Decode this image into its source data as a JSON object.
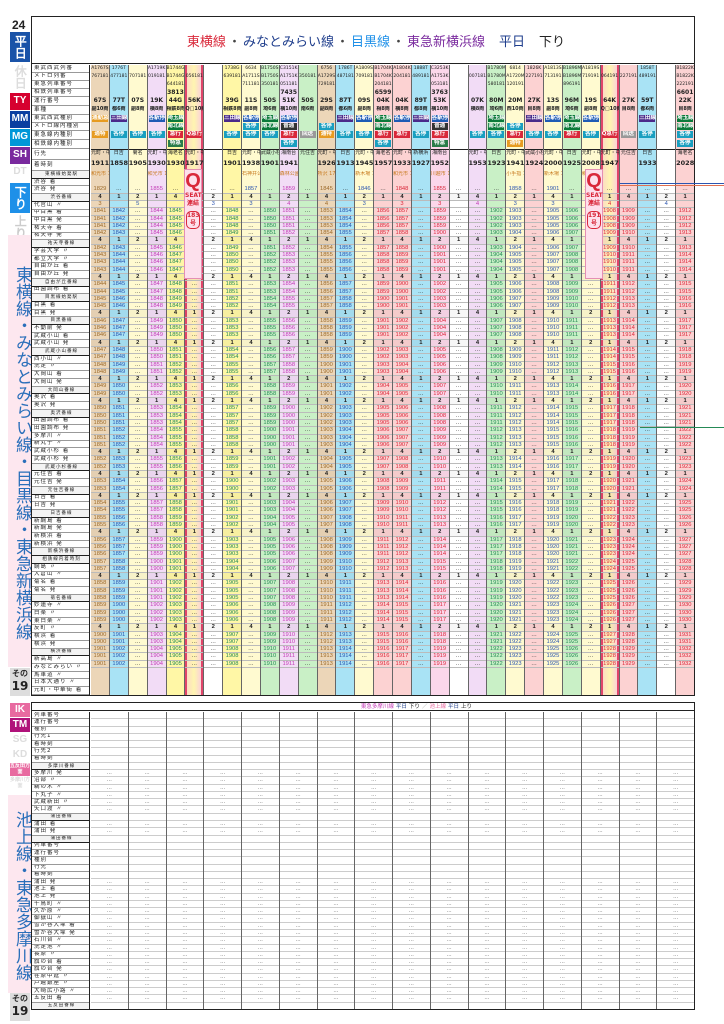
{
  "page": {
    "number": "24",
    "footer_label": "その",
    "footer_number": "19",
    "day_tabs": [
      {
        "label": "平日",
        "active": true,
        "color": "#1a53a8"
      },
      {
        "label": "休日",
        "active": false,
        "color": "#dddddd"
      }
    ],
    "line_tags_top": [
      {
        "label": "TY",
        "color": "#d6002f"
      },
      {
        "label": "MM",
        "color": "#0a3ea0"
      },
      {
        "label": "MG",
        "color": "#0097d8"
      },
      {
        "label": "SH",
        "color": "#7a2a9e"
      },
      {
        "label": "DT",
        "color": "#e0e0e0"
      },
      {
        "label": "OM",
        "color": "#e0e0e0"
      }
    ],
    "direction_tabs": [
      {
        "label": "下り",
        "active": true,
        "color": "#1e90e8"
      },
      {
        "label": "上り",
        "active": false,
        "color": "#dddddd"
      }
    ],
    "vertical_title_top": "東横線・みなとみらい線・目黒線・東急新横浜線",
    "line_tags_bottom": [
      {
        "label": "IK",
        "color": "#e86aa0"
      },
      {
        "label": "TM",
        "color": "#b0127a"
      },
      {
        "label": "SG",
        "color": "#e0e0e0"
      },
      {
        "label": "KD",
        "color": "#e0e0e0"
      },
      {
        "label": "五反田方面",
        "color": "#e86aa0"
      },
      {
        "label": "多摩川方面",
        "color": "#e0e0e0"
      }
    ],
    "vertical_title_bottom": "池上線・東急多摩川線"
  },
  "upper_table": {
    "title": {
      "parts": [
        {
          "text": "東横線",
          "color": "#d9283a"
        },
        {
          "text": "・",
          "color": "#444444"
        },
        {
          "text": "みなとみらい線",
          "color": "#1e3d8c"
        },
        {
          "text": "・",
          "color": "#444444"
        },
        {
          "text": "目黒線",
          "color": "#1e90e8"
        },
        {
          "text": "・",
          "color": "#444444"
        },
        {
          "text": "東急新横浜線",
          "color": "#7a2a9e"
        },
        {
          "text": "平日",
          "color": "#1e3d8c"
        },
        {
          "text": "下り",
          "color": "#222222"
        }
      ]
    },
    "header_labels": [
      "東武西武列番",
      "メトロ列番",
      "東急列車番号",
      "相鉄列車番号",
      "運行番号",
      "車種",
      "東武西武種別",
      "メトロ線内種別",
      "東急線内種別",
      "相鉄線内種別",
      "行先",
      "着時刻"
    ],
    "station_labels": [
      "東横線始発駅",
      "渋谷 着",
      "渋谷 発",
      "渋谷番線",
      "代官山 〃",
      "中目黒 着",
      "中目黒 発",
      "祐天寺 着",
      "祐天寺 発",
      "祐天寺番線",
      "学芸大学 〃",
      "都立大学 〃",
      "自由が丘 着",
      "自由が丘 発",
      "自由が丘番線",
      "田園調布 着",
      "目黒線始発駅",
      "目黒 着",
      "目黒 発",
      "目黒番線",
      "不動前 発",
      "武蔵小山 着",
      "武蔵小山 発",
      "武蔵小山番線",
      "西小山 〃",
      "洗足 〃",
      "大岡山 着",
      "大岡山 発",
      "大岡山番線",
      "奥沢 着",
      "奥沢 発",
      "奥沢番線",
      "田園調布 着",
      "田園調布 発",
      "多摩川 〃",
      "新丸子 〃",
      "武蔵小杉 着",
      "武蔵小杉 発",
      "武蔵小杉番線",
      "元住吉 着",
      "元住吉 発",
      "元住吉番線",
      "日吉 着",
      "日吉 発",
      "日吉番線",
      "新綱島 着",
      "新綱島 発",
      "新横浜 着",
      "新横浜 発",
      "新横浜番線",
      "相鉄線内着時刻",
      "綱島 〃",
      "大倉山 〃",
      "菊名 着",
      "菊名 発",
      "菊名番線",
      "妙蓮寺 〃",
      "白楽 〃",
      "東白楽 〃",
      "反町 〃",
      "横浜 着",
      "横浜 発",
      "横浜番線",
      "新高島 〃",
      "みなとみらい 〃",
      "馬車道 〃",
      "日本大通り 〃",
      "元町・中華街 着"
    ],
    "trains": [
      {
        "tobu": "A1767S",
        "metro": "767181",
        "tokyu": "",
        "run": "67S",
        "car": "副10両",
        "type_seibu": "通勤急行",
        "type_metro": "",
        "type_tokyu": "通特",
        "dest": "元町・中華街",
        "arr": "1911",
        "bg": "tan",
        "origin": "和光市 1759"
      },
      {
        "tobu": "1776T",
        "metro": "477181",
        "tokyu": "",
        "run": "77T",
        "car": "都6両",
        "type_seibu": "三田線",
        "type_metro": "",
        "type_tokyu": "各停",
        "dest": "日吉",
        "arr": "1858",
        "bg": "cyan",
        "origin": ""
      },
      {
        "tobu": "",
        "metro": "707181",
        "tokyu": "",
        "run": "07S",
        "car": "副8両",
        "type_seibu": "",
        "type_metro": "",
        "type_tokyu": "各停",
        "dest": "菊名",
        "arr": "1905",
        "bg": "lyel",
        "origin": ""
      },
      {
        "tobu": "A1719K",
        "metro": "019181",
        "tokyu": "",
        "run": "19K",
        "car": "横8両",
        "type_seibu": "各駅停車",
        "type_metro": "",
        "type_tokyu": "各停",
        "dest": "元町・中華街",
        "arr": "1930",
        "bg": "lav",
        "origin": "和光市 1752"
      },
      {
        "tobu": "B1744G",
        "metro": "B1744G",
        "tokyu": "644181",
        "sotetsu": "3813",
        "run": "44G",
        "car": "相鉄8両",
        "type_seibu": "埼玉線",
        "type_metro": "南北線",
        "type_tokyu": "急行",
        "type_sotetsu": "特急",
        "dest": "海老名",
        "arr": "1930",
        "bg": "yel",
        "origin": ""
      },
      {
        "tobu": "",
        "metro": "056181",
        "tokyu": "",
        "run": "56K",
        "car": "Q□10両",
        "type_seibu": "",
        "type_metro": "",
        "type_tokyu": "Q急行",
        "dest": "元町・中華街",
        "arr": "1917",
        "bg": "grad",
        "origin": ""
      },
      {
        "tobu": "",
        "metro": "",
        "run": "",
        "car": "",
        "type_tokyu": "",
        "dest": "",
        "arr": "",
        "bg": "none",
        "origin": ""
      },
      {
        "tobu": "1738G",
        "metro": "639181",
        "run": "39G",
        "car": "相鉄8両",
        "type_seibu": "三田線",
        "type_tokyu": "各停",
        "dest": "日吉",
        "arr": "1901",
        "bg": "yel",
        "origin": ""
      },
      {
        "tobu": "6634",
        "metro": "A1711S",
        "tokyu": "711181",
        "run": "11S",
        "car": "副8両",
        "type_metro": "各停",
        "type_seibu": "各駅停車",
        "type_tokyu": "各停",
        "dest": "元町・中華街",
        "arr": "1938",
        "bg": "lyel",
        "origin": "石神井公園 1756"
      },
      {
        "tobu": "B1750S",
        "metro": "B1750S",
        "tokyu": "350181",
        "run": "50S",
        "car": "埼6両",
        "type_seibu": "埼玉線",
        "type_metro": "南北線",
        "type_tokyu": "各停",
        "dest": "武蔵小杉",
        "arr": "1901",
        "bg": "grn",
        "origin": ""
      },
      {
        "tobu": "C3151K",
        "metro": "A1751K",
        "tokyu": "051181",
        "sotetsu": "7435",
        "run": "51K",
        "car": "横10両",
        "type_metro": "普通",
        "type_seibu": "各駅停車",
        "type_tokyu": "急行",
        "type_sotetsu": "各停",
        "dest": "湘南台",
        "arr": "1941",
        "bg": "lav",
        "origin": "森林公園 1707"
      },
      {
        "tobu": "",
        "metro": "350181",
        "run": "50S",
        "car": "南6両",
        "type_tokyu": "回送",
        "dest": "元住吉",
        "arr": "",
        "bg": "grn",
        "origin": ""
      },
      {
        "tobu": "6756",
        "metro": "A1729S",
        "tokyu": "729181",
        "run": "29S",
        "car": "副8両",
        "type_metro": "各停",
        "type_seibu": "",
        "type_tokyu": "通特",
        "dest": "元町・中華街",
        "arr": "1926",
        "bg": "tan",
        "origin": "所沢 1749"
      },
      {
        "tobu": "1786T",
        "metro": "487181",
        "run": "87T",
        "car": "都6両",
        "type_seibu": "三田線",
        "type_tokyu": "各停",
        "dest": "日吉",
        "arr": "1913",
        "bg": "cyan",
        "origin": ""
      },
      {
        "tobu": "A1809S",
        "metro": "709181",
        "run": "09S",
        "car": "副8両",
        "type_seibu": "各駅停車",
        "type_tokyu": "各停",
        "dest": "元町・中華街",
        "arr": "1945",
        "bg": "lyel",
        "origin": "新木場 1859"
      },
      {
        "tobu": "B1704K",
        "metro": "B1704K",
        "tokyu": "204181",
        "sotetsu": "6599",
        "run": "04K",
        "car": "相8両",
        "type_seibu": "埼玉線",
        "type_metro": "南北線",
        "type_tokyu": "急行",
        "type_sotetsu": "各停",
        "dest": "海老名",
        "arr": "1957",
        "bg": "rose",
        "origin": ""
      },
      {
        "tobu": "A1804K",
        "metro": "204181",
        "run": "04K",
        "car": "横8両",
        "type_seibu": "各駅停車",
        "type_tokyu": "急行",
        "dest": "元町・中華街",
        "arr": "1933",
        "bg": "rose",
        "origin": "和光市 1808"
      },
      {
        "tobu": "1888T",
        "metro": "489181",
        "run": "89T",
        "car": "都8両",
        "type_seibu": "三田線",
        "type_tokyu": "各停",
        "dest": "新横浜",
        "arr": "1927",
        "bg": "cyan",
        "origin": ""
      },
      {
        "tobu": "C3253K",
        "metro": "A1753K",
        "tokyu": "053181",
        "sotetsu": "3763",
        "run": "53K",
        "car": "横10両",
        "type_metro": "普通",
        "type_seibu": "各駅停車",
        "type_tokyu": "急行",
        "type_sotetsu": "特急",
        "dest": "湘南台",
        "arr": "1952",
        "bg": "pink",
        "origin": "川越市 1745"
      },
      {
        "tobu": "",
        "bg": "none"
      },
      {
        "tobu": "",
        "metro": "007181",
        "run": "07K",
        "car": "横8両",
        "type_tokyu": "各停",
        "dest": "元町・中華街",
        "arr": "1953",
        "bg": "lav",
        "origin": ""
      },
      {
        "tobu": "B1780M",
        "metro": "B1780M",
        "tokyu": "580181",
        "run": "80M",
        "car": "埼6両",
        "type_seibu": "埼玉線",
        "type_metro": "南北線",
        "type_tokyu": "各停",
        "dest": "日吉",
        "arr": "1923",
        "bg": "grn",
        "origin": ""
      },
      {
        "tobu": "6814",
        "metro": "A1720M",
        "tokyu": "120191",
        "run": "20M",
        "car": "西10両",
        "type_metro": "各停",
        "type_tokyu": "急行",
        "type_sotetsu": "通特",
        "dest": "元町・中華街",
        "arr": "1941",
        "bg": "lyel",
        "origin": "小手指 1757"
      },
      {
        "tobu": "1826K",
        "metro": "227191",
        "run": "27K",
        "car": "目8両",
        "type_seibu": "三田線",
        "type_tokyu": "各停",
        "dest": "武蔵小杉",
        "arr": "1924",
        "bg": "rose",
        "origin": ""
      },
      {
        "tobu": "A1813S",
        "metro": "713191",
        "run": "13S",
        "car": "副8両",
        "type_seibu": "各駅停車",
        "type_tokyu": "各停",
        "dest": "元町・中華街",
        "arr": "2000",
        "bg": "lyel",
        "origin": "新木場 1854"
      },
      {
        "tobu": "B1896M",
        "metro": "B1896M",
        "tokyu": "896191",
        "run": "96M",
        "car": "埼6両",
        "type_seibu": "埼玉線",
        "type_metro": "南北線",
        "type_tokyu": "急行",
        "dest": "日吉",
        "arr": "1925",
        "bg": "grn",
        "origin": ""
      },
      {
        "tobu": "A1819S",
        "metro": "719191",
        "run": "19S",
        "car": "副8両",
        "type_seibu": "各駅停車",
        "type_tokyu": "各停",
        "dest": "元町・中華街",
        "arr": "2008",
        "bg": "lyel",
        "origin": "和光市 1825"
      },
      {
        "tobu": "",
        "metro": "064191",
        "run": "64K",
        "car": "Q□10両",
        "type_tokyu": "Q急行",
        "dest": "元町・中華街",
        "arr": "1947",
        "bg": "grad",
        "origin": ""
      },
      {
        "tobu": "",
        "metro": "227191",
        "run": "27K",
        "car": "目8両",
        "type_tokyu": "回送",
        "dest": "元住吉",
        "arr": "",
        "bg": "rose",
        "origin": ""
      },
      {
        "tobu": "1858T",
        "metro": "489191",
        "run": "59T",
        "car": "都6両",
        "type_seibu": "三田線",
        "type_tokyu": "各停",
        "dest": "日吉",
        "arr": "1933",
        "bg": "cyan",
        "origin": ""
      },
      {
        "tobu": "",
        "bg": "none"
      },
      {
        "tobu": "B1822K",
        "metro": "B1822K",
        "tokyu": "222191",
        "sotetsu": "6601",
        "run": "22K",
        "car": "目8両",
        "type_seibu": "埼玉線",
        "type_metro": "南北線",
        "type_tokyu": "各停",
        "type_sotetsu": "各停",
        "dest": "海老名",
        "arr": "2028",
        "bg": "rose",
        "origin": ""
      }
    ],
    "shibuya_arr_row": [
      "1829",
      "…",
      "…",
      "1855",
      "…",
      "…",
      "…",
      "…",
      "1857",
      "…",
      "1859",
      "…",
      "1845",
      "…",
      "1846",
      "…",
      "1848",
      "…",
      "1855",
      "…",
      "…",
      "…",
      "1858",
      "…",
      "1901",
      "…",
      "1905",
      "…",
      "…",
      "…",
      "…",
      "…"
    ],
    "shibuya_dep_row": [
      "1830",
      "…",
      "1851",
      "…",
      "1856",
      "1856",
      "…",
      "…",
      "1840",
      "…",
      "1841",
      "…",
      "1845",
      "…",
      "1847",
      "…",
      "1850",
      "…",
      "1854",
      "…",
      "1856",
      "…",
      "1900",
      "…",
      "1902",
      "…",
      "…",
      "1905",
      "…",
      "…",
      "1909",
      "…"
    ],
    "shibuya_track_row": [
      "3",
      "",
      "5",
      "",
      "",
      "4",
      "3",
      "",
      "3",
      "",
      "4",
      "",
      "4",
      "",
      "3",
      "",
      "3",
      "",
      "3",
      "",
      "4",
      "",
      "3",
      "",
      "3",
      "",
      "",
      "4",
      "",
      "",
      "4",
      ""
    ],
    "denenchofu_arr_row": [
      "1843",
      "…",
      "1847",
      "…",
      "1848",
      "1850",
      "…",
      "1852",
      "…",
      "1856",
      "…",
      "1902",
      "…",
      "1904",
      "1907",
      "…",
      "1907",
      "1913",
      "…",
      "1918",
      "…",
      "1919",
      "…",
      "1922",
      ""
    ],
    "q_seat_notes": [
      {
        "label": "Q",
        "sub": "SEAT 連結",
        "number": "183号"
      },
      {
        "label": "Q",
        "sub": "SEAT 連結",
        "number": "191号"
      }
    ]
  },
  "lower_table": {
    "title_parts": [
      {
        "text": "東急多摩川線",
        "color": "#c23bb5"
      },
      {
        "text": "平日",
        "color": "#1e3d8c"
      },
      {
        "text": "下り",
        "color": "#222222"
      },
      {
        "text": "／",
        "color": "#888888"
      },
      {
        "text": "池上線",
        "color": "#e86aa0"
      },
      {
        "text": "平日",
        "color": "#1e3d8c"
      },
      {
        "text": "上り",
        "color": "#222222"
      }
    ],
    "tamagawa_labels": [
      "列車番号",
      "運行番号",
      "種別",
      "行先1",
      "着時刻",
      "行先2",
      "着時刻",
      "多摩川番線",
      "多摩川 発",
      "沼部 〃",
      "鵜の木 〃",
      "下丸子 〃",
      "武蔵新田 〃",
      "矢口渡 〃",
      "蒲田番線",
      "蒲田 着",
      "蒲田 発",
      "蒲田番線"
    ],
    "ikegami_labels": [
      "列車番号",
      "運行番号",
      "種別",
      "行先",
      "着時刻",
      "蒲田 発",
      "池上 着",
      "池上 発",
      "千鳥町 〃",
      "久が原 〃",
      "御嶽山 〃",
      "雪が谷大塚 着",
      "雪が谷大塚 発",
      "石川台 〃",
      "洗足池 〃",
      "長原 〃",
      "旗の台 着",
      "旗の台 発",
      "荏原中延 〃",
      "戸越銀座 〃",
      "大崎広小路 〃",
      "五反田 着",
      "五反田番線"
    ],
    "column_count": 16,
    "empty_value": "…"
  }
}
